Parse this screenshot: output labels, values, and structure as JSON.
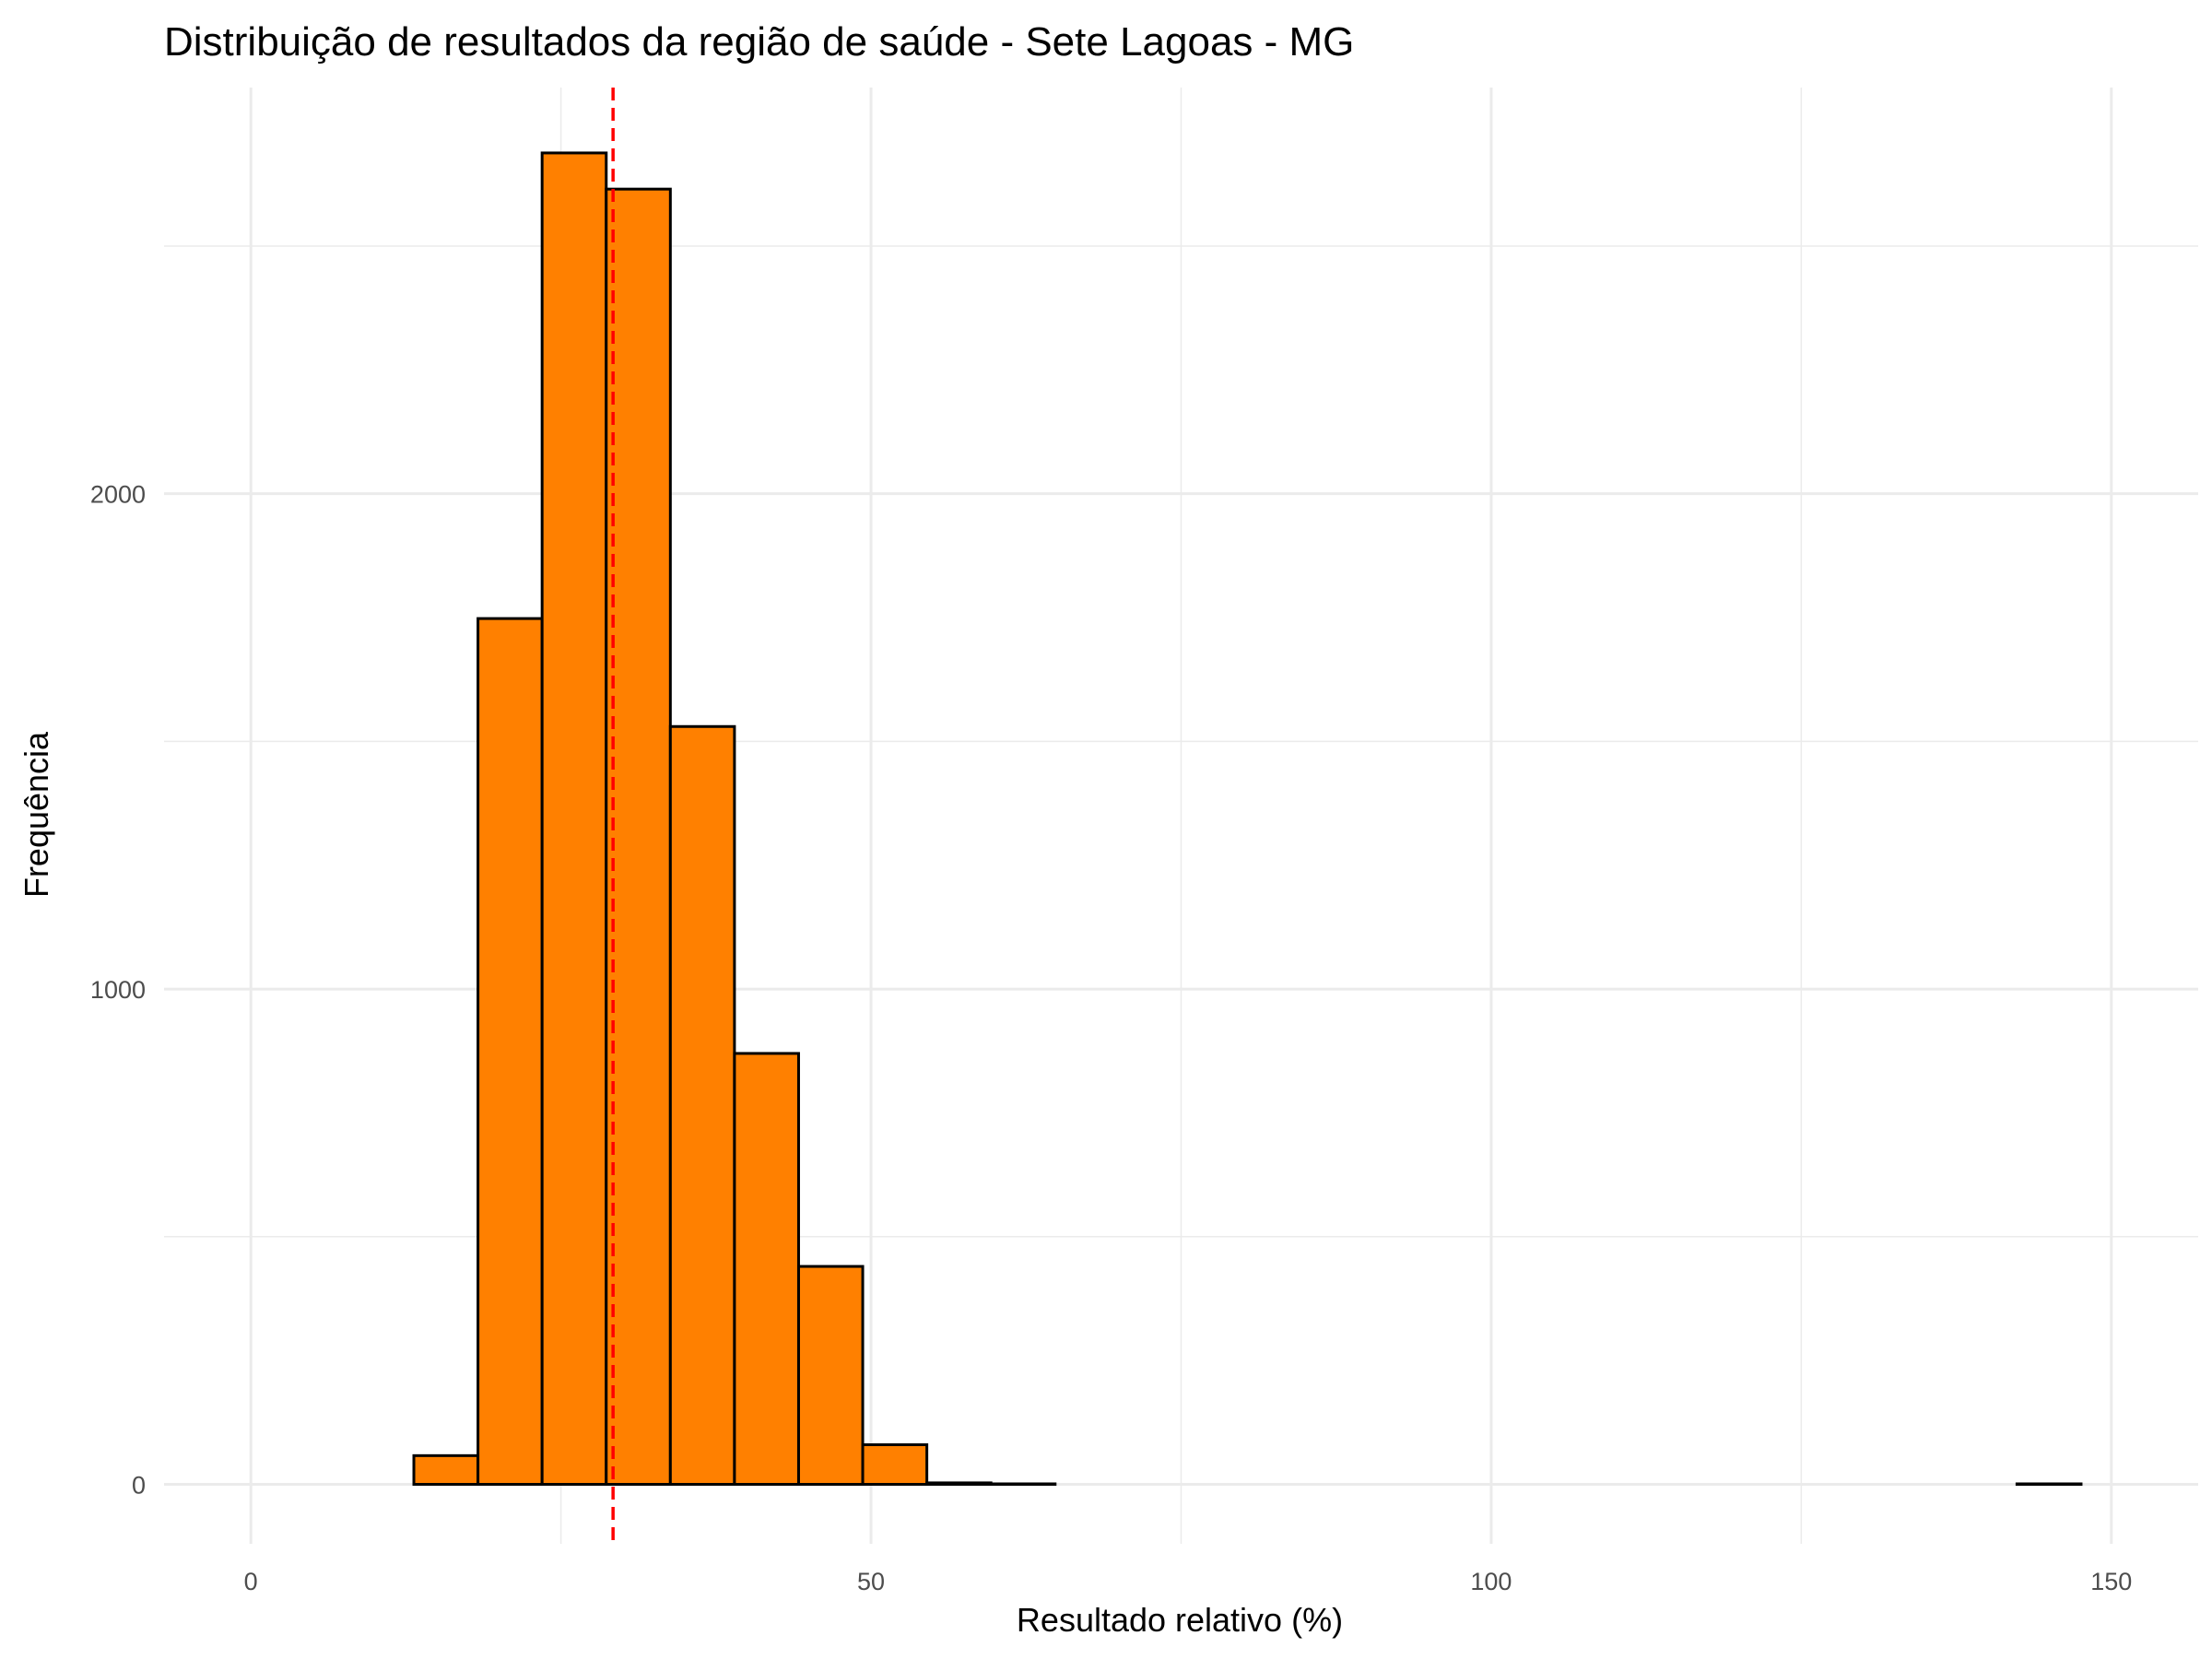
{
  "chart_data": {
    "type": "bar",
    "title": "Distribuição de resultados da região de saúde - Sete Lagoas - MG",
    "xlabel": "Resultado relativo (%)",
    "ylabel": "Frequência",
    "xlim": [
      -7,
      157
    ],
    "ylim": [
      -120,
      2820
    ],
    "x_ticks": [
      0,
      50,
      100,
      150
    ],
    "x_tick_labels": [
      "0",
      "50",
      "100",
      "150"
    ],
    "y_ticks": [
      0,
      1000,
      2000
    ],
    "y_tick_labels": [
      "0",
      "1000",
      "2000"
    ],
    "grid": true,
    "legend": "none",
    "bar_color": "#FF8000",
    "bar_edge_color": "#000000",
    "reference_line": {
      "x": 29.2,
      "color": "#FF0000",
      "style": "dashed"
    },
    "bin_width": 5.17,
    "bin_starts": [
      2.8,
      7.97,
      13.14,
      18.31,
      23.48,
      28.65,
      33.82,
      38.99,
      44.16,
      49.33,
      54.5,
      59.67,
      64.84,
      70.01,
      75.18,
      80.35,
      85.52,
      90.69,
      95.86,
      101.03,
      106.2,
      111.37,
      116.54,
      121.71,
      126.88,
      132.05,
      137.22,
      142.39
    ],
    "values": [
      0,
      0,
      58,
      1748,
      2688,
      2615,
      1530,
      870,
      440,
      80,
      3,
      1,
      0,
      0,
      0,
      0,
      0,
      0,
      0,
      0,
      0,
      0,
      0,
      0,
      0,
      0,
      0,
      1
    ]
  }
}
